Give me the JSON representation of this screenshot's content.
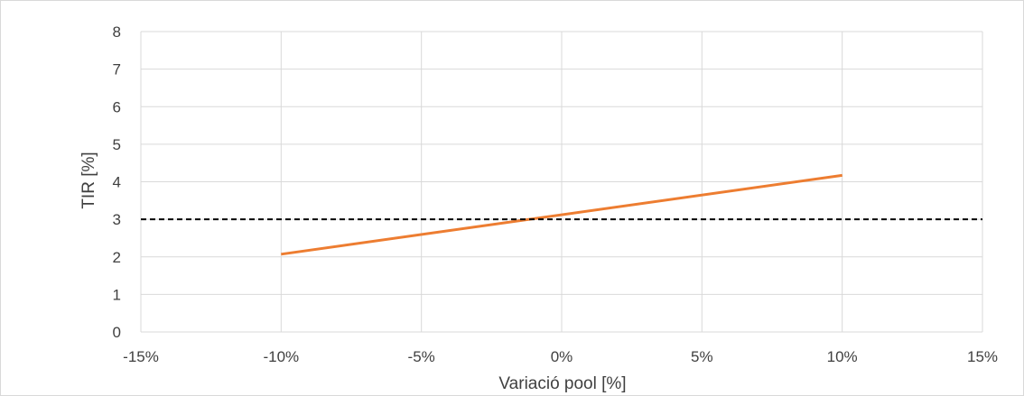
{
  "chart_data": {
    "type": "line",
    "title": "",
    "xlabel": "Variació pool [%]",
    "ylabel": "TIR [%]",
    "xlim": [
      -15,
      15
    ],
    "ylim": [
      0,
      8
    ],
    "x_ticks": [
      -15,
      -10,
      -5,
      0,
      5,
      10,
      15
    ],
    "x_tick_labels": [
      "-15%",
      "-10%",
      "-5%",
      "0%",
      "5%",
      "10%",
      "15%"
    ],
    "y_ticks": [
      0,
      1,
      2,
      3,
      4,
      5,
      6,
      7,
      8
    ],
    "y_tick_labels": [
      "0",
      "1",
      "2",
      "3",
      "4",
      "5",
      "6",
      "7",
      "8"
    ],
    "grid": true,
    "legend": "none",
    "series": [
      {
        "x": [
          -10,
          10
        ],
        "y": [
          2.07,
          4.17
        ],
        "color": "#ed7d31",
        "style": "solid"
      },
      {
        "x": [
          -15,
          15
        ],
        "y": [
          3,
          3
        ],
        "color": "#000000",
        "style": "dashed"
      }
    ]
  }
}
